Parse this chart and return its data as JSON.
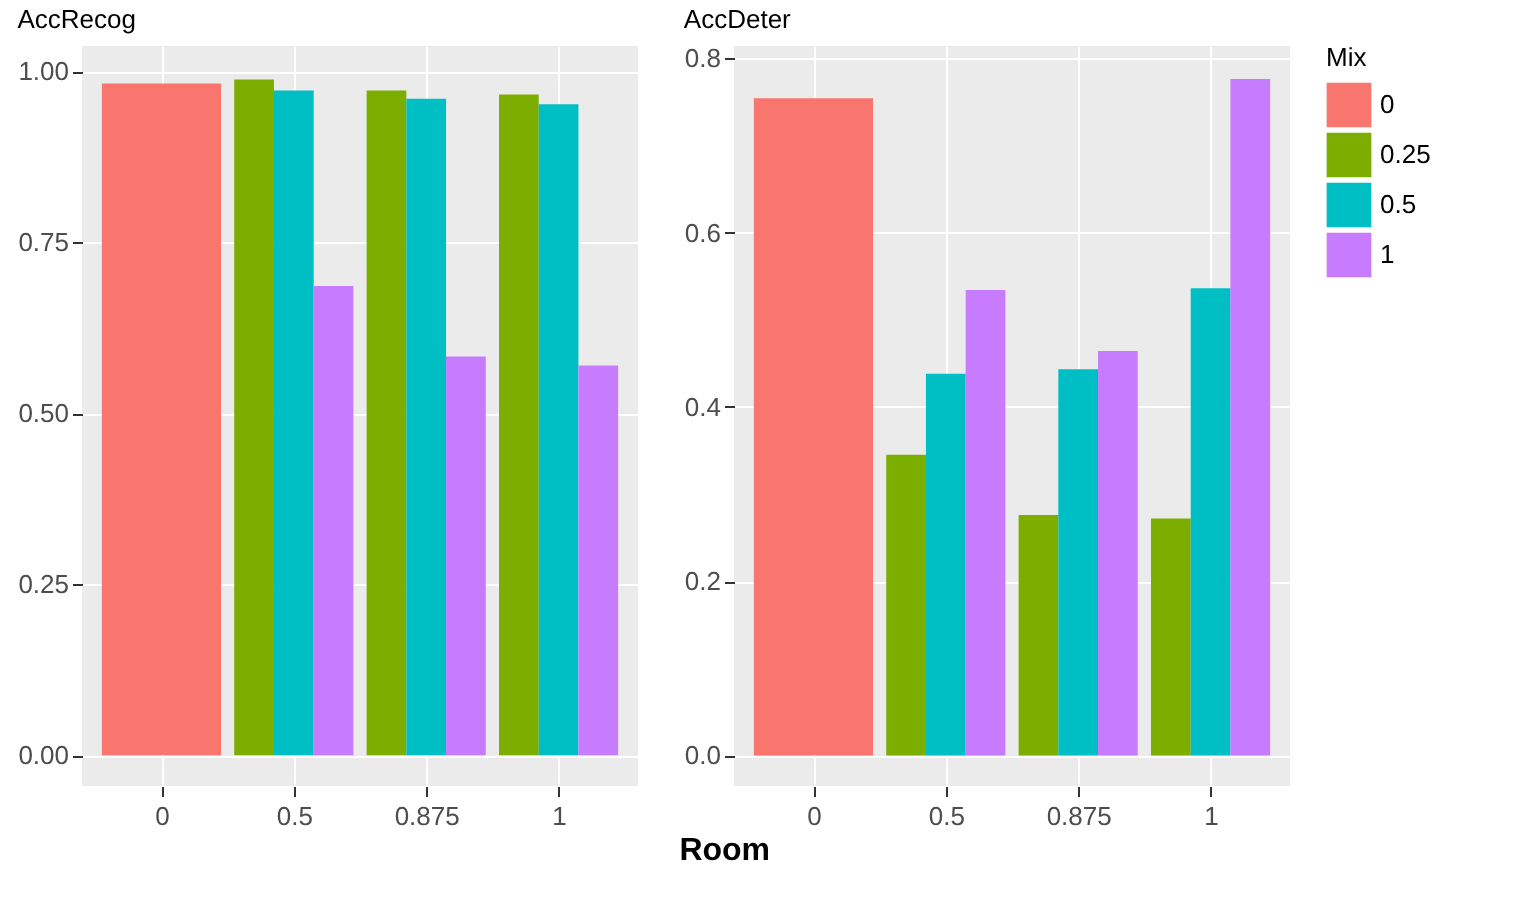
{
  "chart_data": [
    {
      "type": "bar",
      "title": "AccRecog",
      "xlabel": "Room",
      "legend_title": "Mix",
      "legend": "right",
      "categories": [
        "0",
        "0.5",
        "0.875",
        "1"
      ],
      "series": [
        {
          "name": "0",
          "color": "#f8766d",
          "values": [
            0.982,
            null,
            null,
            null
          ]
        },
        {
          "name": "0.25",
          "color": "#7cae00",
          "values": [
            null,
            0.988,
            0.972,
            0.966
          ]
        },
        {
          "name": "0.5",
          "color": "#00bfc4",
          "values": [
            null,
            0.972,
            0.96,
            0.952
          ]
        },
        {
          "name": "1",
          "color": "#c77cff",
          "values": [
            null,
            0.686,
            0.583,
            0.57
          ]
        }
      ],
      "ylim": [
        -0.045,
        1.037
      ],
      "yticks": [
        {
          "value": 0,
          "label": "0.00"
        },
        {
          "value": 0.25,
          "label": "0.25"
        },
        {
          "value": 0.5,
          "label": "0.50"
        },
        {
          "value": 0.75,
          "label": "0.75"
        },
        {
          "value": 1,
          "label": "1.00"
        }
      ],
      "grid": true
    },
    {
      "type": "bar",
      "title": "AccDeter",
      "categories": [
        "0",
        "0.5",
        "0.875",
        "1"
      ],
      "series": [
        {
          "name": "0",
          "color": "#f8766d",
          "values": [
            0.754,
            null,
            null,
            null
          ]
        },
        {
          "name": "0.25",
          "color": "#7cae00",
          "values": [
            null,
            0.345,
            0.276,
            0.272
          ]
        },
        {
          "name": "0.5",
          "color": "#00bfc4",
          "values": [
            null,
            0.438,
            0.443,
            0.536
          ]
        },
        {
          "name": "1",
          "color": "#c77cff",
          "values": [
            null,
            0.534,
            0.464,
            0.776
          ]
        }
      ],
      "ylim": [
        -0.035,
        0.814
      ],
      "yticks": [
        {
          "value": 0,
          "label": "0.0"
        },
        {
          "value": 0.2,
          "label": "0.2"
        },
        {
          "value": 0.4,
          "label": "0.4"
        },
        {
          "value": 0.6,
          "label": "0.6"
        },
        {
          "value": 0.8,
          "label": "0.8"
        }
      ],
      "grid": true
    }
  ]
}
